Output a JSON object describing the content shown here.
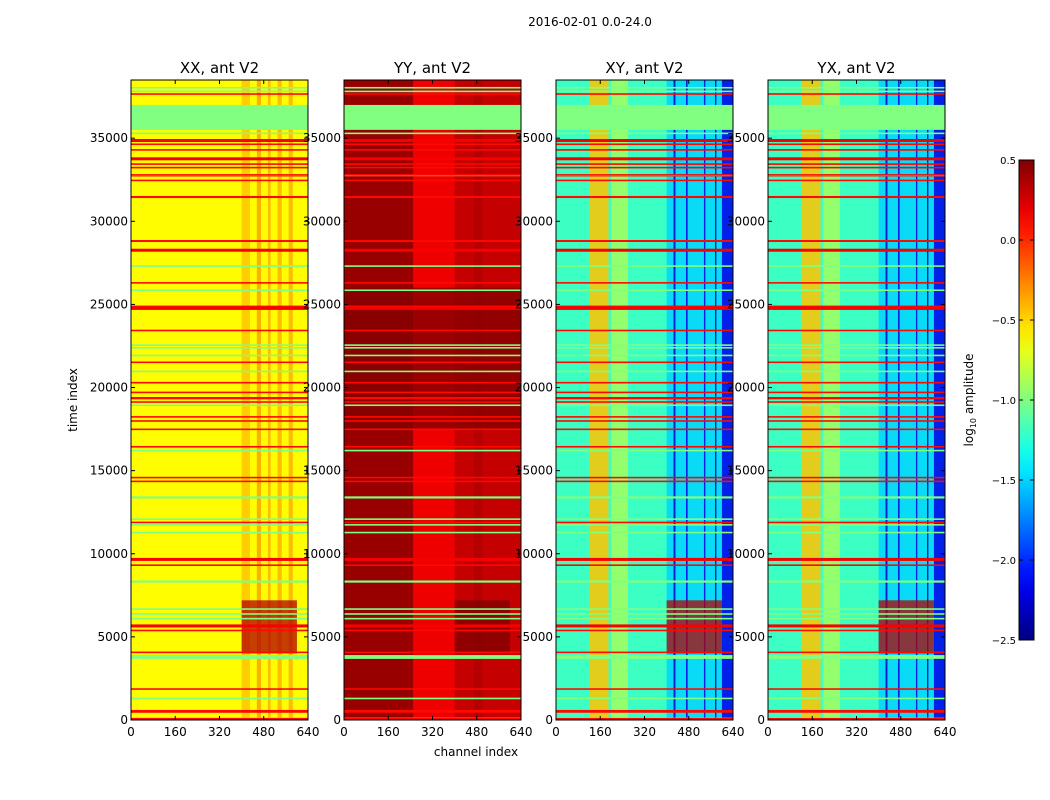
{
  "figure_title": "2016-02-01 0.0-24.0",
  "chart_data": {
    "type": "heatmap",
    "title": "2016-02-01 0.0-24.0",
    "xlabel": "channel index",
    "ylabel": "time index",
    "xlim": [
      0,
      640
    ],
    "ylim": [
      0,
      38500
    ],
    "x_ticks": [
      0,
      160,
      320,
      480,
      640
    ],
    "y_ticks": [
      0,
      5000,
      10000,
      15000,
      20000,
      25000,
      30000,
      35000
    ],
    "x_tick_labels": [
      "0",
      "160",
      "320",
      "480",
      "640"
    ],
    "y_tick_labels": [
      "0",
      "5000",
      "10000",
      "15000",
      "20000",
      "25000",
      "30000",
      "35000"
    ],
    "panels": [
      {
        "title": "XX, ant V2",
        "base_level": -0.62
      },
      {
        "title": "YY, ant V2",
        "base_level": 0.3
      },
      {
        "title": "XY, ant V2",
        "base_level": -1.2
      },
      {
        "title": "YX, ant V2",
        "base_level": -1.2
      }
    ],
    "flagged_block_time": [
      35500,
      37000
    ],
    "flagged_level": -1.0,
    "colorbar": {
      "label_main": "log",
      "label_sub": "10",
      "label_tail": " amplitude",
      "range": [
        -2.5,
        0.5
      ],
      "ticks": [
        0.5,
        0.0,
        -0.5,
        -1.0,
        -1.5,
        -2.0,
        -2.5
      ],
      "tick_labels": [
        "0.5",
        "0.0",
        "−0.5",
        "−1.0",
        "−1.5",
        "−2.0",
        "−2.5"
      ],
      "colormap": "jet"
    }
  }
}
